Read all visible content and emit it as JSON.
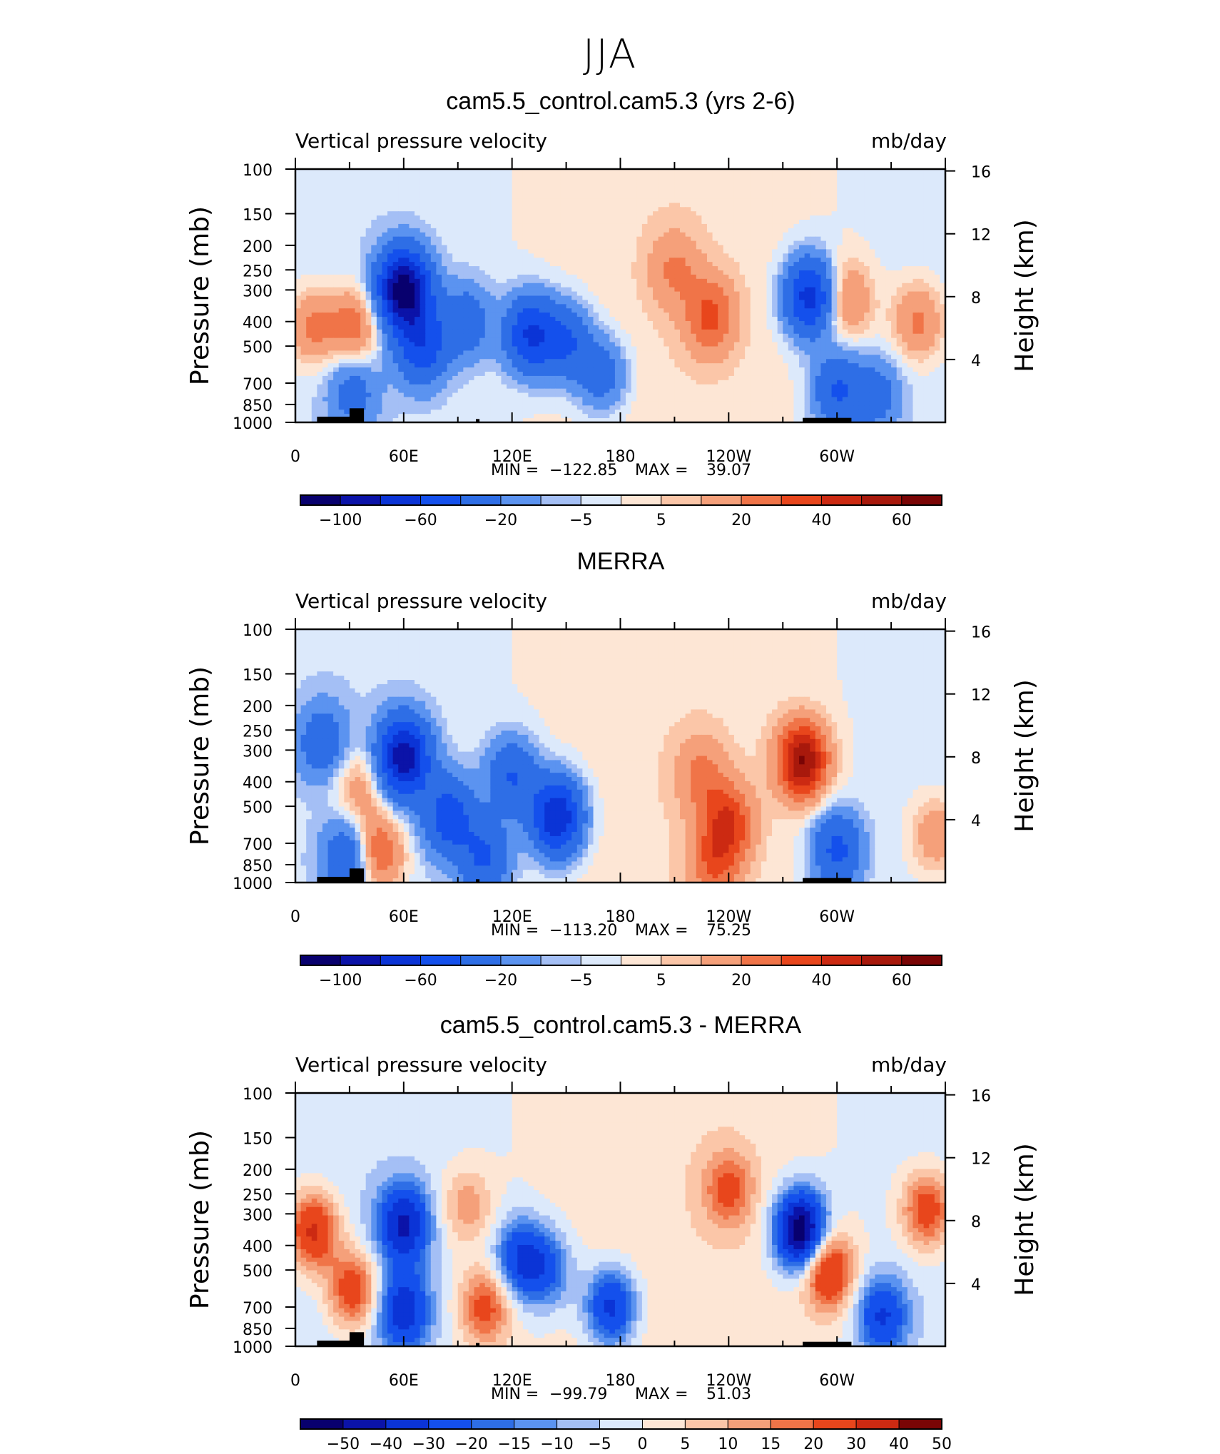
{
  "figure": {
    "season": "JJA"
  },
  "chart_data": [
    {
      "type": "heatmap",
      "title": "cam5.5_control.cam5.3 (yrs 2-6)",
      "variable": "Vertical pressure velocity",
      "units": "mb/day",
      "xlabel": "",
      "ylabel": "Pressure (mb)",
      "y2label": "Height (km)",
      "xticks": [
        "0",
        "60E",
        "120E",
        "180",
        "120W",
        "60W"
      ],
      "yticks": [
        "100",
        "150",
        "200",
        "250",
        "300",
        "400",
        "500",
        "700",
        "850",
        "1000"
      ],
      "y2ticks": [
        "16",
        "12",
        "8",
        "4"
      ],
      "stats": {
        "min_label": "MIN =",
        "min": "−122.85",
        "max_label": "MAX =",
        "max": "39.07"
      },
      "colorbar_levels": [
        "−100",
        "−60",
        "−20",
        "−5",
        "5",
        "20",
        "40",
        "60"
      ],
      "features": [
        {
          "lon": 10,
          "p": 420,
          "value": 25
        },
        {
          "lon": 33,
          "p": 420,
          "value": 30
        },
        {
          "lon": 32,
          "p": 750,
          "value": -25
        },
        {
          "lon": 60,
          "p": 300,
          "value": -110
        },
        {
          "lon": 70,
          "p": 500,
          "value": -50
        },
        {
          "lon": 95,
          "p": 400,
          "value": -30
        },
        {
          "lon": 130,
          "p": 450,
          "value": -60
        },
        {
          "lon": 150,
          "p": 480,
          "value": -40
        },
        {
          "lon": 170,
          "p": 650,
          "value": -30
        },
        {
          "lon": 230,
          "p": 380,
          "value": 30
        },
        {
          "lon": 210,
          "p": 250,
          "value": 18
        },
        {
          "lon": 285,
          "p": 320,
          "value": -70
        },
        {
          "lon": 300,
          "p": 750,
          "value": -40
        },
        {
          "lon": 322,
          "p": 780,
          "value": -25
        },
        {
          "lon": 305,
          "p": 330,
          "value": 25
        },
        {
          "lon": 345,
          "p": 400,
          "value": 25
        }
      ]
    },
    {
      "type": "heatmap",
      "title": "MERRA",
      "variable": "Vertical pressure velocity",
      "units": "mb/day",
      "xlabel": "",
      "ylabel": "Pressure (mb)",
      "y2label": "Height (km)",
      "xticks": [
        "0",
        "60E",
        "120E",
        "180",
        "120W",
        "60W"
      ],
      "yticks": [
        "100",
        "150",
        "200",
        "250",
        "300",
        "400",
        "500",
        "700",
        "850",
        "1000"
      ],
      "y2ticks": [
        "16",
        "12",
        "8",
        "4"
      ],
      "stats": {
        "min_label": "MIN =",
        "min": "−113.20",
        "max_label": "MAX =",
        "max": "75.25"
      },
      "colorbar_levels": [
        "−100",
        "−60",
        "−20",
        "−5",
        "5",
        "20",
        "40",
        "60"
      ],
      "features": [
        {
          "lon": 15,
          "p": 280,
          "value": -30
        },
        {
          "lon": 35,
          "p": 420,
          "value": 20
        },
        {
          "lon": 45,
          "p": 760,
          "value": 40
        },
        {
          "lon": 30,
          "p": 800,
          "value": -40
        },
        {
          "lon": 60,
          "p": 320,
          "value": -90
        },
        {
          "lon": 85,
          "p": 550,
          "value": -50
        },
        {
          "lon": 120,
          "p": 380,
          "value": -40
        },
        {
          "lon": 145,
          "p": 550,
          "value": -80
        },
        {
          "lon": 105,
          "p": 800,
          "value": -40
        },
        {
          "lon": 225,
          "p": 380,
          "value": 20
        },
        {
          "lon": 240,
          "p": 580,
          "value": 35
        },
        {
          "lon": 232,
          "p": 850,
          "value": 25
        },
        {
          "lon": 281,
          "p": 330,
          "value": 60
        },
        {
          "lon": 300,
          "p": 740,
          "value": -45
        },
        {
          "lon": 355,
          "p": 650,
          "value": 20
        }
      ]
    },
    {
      "type": "heatmap",
      "title": "cam5.5_control.cam5.3 - MERRA",
      "variable": "Vertical pressure velocity",
      "units": "mb/day",
      "xlabel": "",
      "ylabel": "Pressure (mb)",
      "y2label": "Height (km)",
      "xticks": [
        "0",
        "60E",
        "120E",
        "180",
        "120W",
        "60W"
      ],
      "yticks": [
        "100",
        "150",
        "200",
        "250",
        "300",
        "400",
        "500",
        "700",
        "850",
        "1000"
      ],
      "y2ticks": [
        "16",
        "12",
        "8",
        "4"
      ],
      "stats": {
        "min_label": "MIN =",
        "min": "−99.79",
        "max_label": "MAX =",
        "max": "51.03"
      },
      "colorbar_levels": [
        "−50",
        "−40",
        "−30",
        "−20",
        "−15",
        "−10",
        "−5",
        "0",
        "5",
        "10",
        "15",
        "20",
        "30",
        "40",
        "50"
      ],
      "features": [
        {
          "lon": 10,
          "p": 350,
          "value": 35
        },
        {
          "lon": 32,
          "p": 600,
          "value": 30
        },
        {
          "lon": 60,
          "p": 330,
          "value": -40
        },
        {
          "lon": 60,
          "p": 720,
          "value": -35
        },
        {
          "lon": 95,
          "p": 280,
          "value": 15
        },
        {
          "lon": 105,
          "p": 700,
          "value": 25
        },
        {
          "lon": 125,
          "p": 450,
          "value": -30
        },
        {
          "lon": 140,
          "p": 500,
          "value": -20
        },
        {
          "lon": 175,
          "p": 700,
          "value": -35
        },
        {
          "lon": 240,
          "p": 240,
          "value": 20
        },
        {
          "lon": 280,
          "p": 350,
          "value": -60
        },
        {
          "lon": 295,
          "p": 500,
          "value": 35
        },
        {
          "lon": 325,
          "p": 760,
          "value": -30
        },
        {
          "lon": 350,
          "p": 290,
          "value": 28
        }
      ]
    }
  ]
}
